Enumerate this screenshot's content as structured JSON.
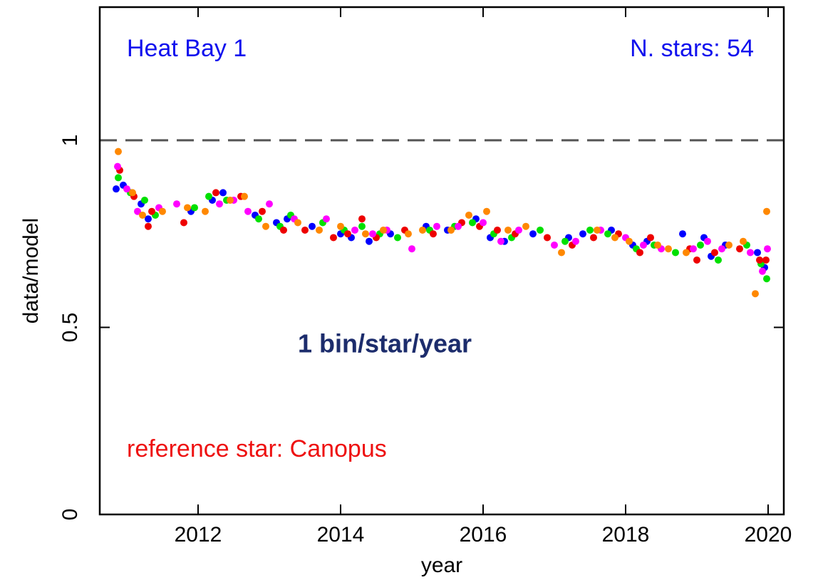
{
  "chart_data": {
    "type": "scatter",
    "annotations": [
      "Heat Bay 1",
      "N. stars: 54",
      "1 bin/star/year",
      "reference star: Canopus"
    ],
    "xlabel": "year",
    "ylabel": "data/model",
    "xlim": [
      2010.62,
      2020.22
    ],
    "ylim": [
      0,
      1.356
    ],
    "xticks": [
      2012,
      2014,
      2016,
      2018,
      2020
    ],
    "yticks": [
      0,
      0.5,
      1
    ],
    "hline": 1,
    "series": [
      {
        "color": "#0000ff",
        "x": [
          2010.85,
          2010.95,
          2011.2,
          2011.3,
          2011.9,
          2012.2,
          2012.35,
          2012.8,
          2013.1,
          2013.25,
          2013.6,
          2014.0,
          2014.15,
          2014.4,
          2014.7,
          2015.2,
          2015.5,
          2015.9,
          2016.1,
          2016.3,
          2016.7,
          2017.2,
          2017.4,
          2017.8,
          2018.1,
          2018.3,
          2018.8,
          2019.1,
          2019.2,
          2019.4,
          2019.85,
          2019.95
        ],
        "values": [
          0.87,
          0.88,
          0.83,
          0.79,
          0.81,
          0.84,
          0.86,
          0.8,
          0.78,
          0.79,
          0.77,
          0.75,
          0.74,
          0.73,
          0.75,
          0.77,
          0.76,
          0.79,
          0.74,
          0.73,
          0.75,
          0.74,
          0.75,
          0.76,
          0.72,
          0.73,
          0.75,
          0.74,
          0.69,
          0.72,
          0.7,
          0.66
        ]
      },
      {
        "color": "#00e000",
        "x": [
          2010.88,
          2011.05,
          2011.25,
          2011.4,
          2011.95,
          2012.15,
          2012.4,
          2012.85,
          2013.15,
          2013.3,
          2013.75,
          2014.05,
          2014.3,
          2014.55,
          2014.8,
          2015.25,
          2015.6,
          2015.85,
          2016.15,
          2016.4,
          2016.8,
          2017.15,
          2017.5,
          2017.75,
          2018.15,
          2018.4,
          2018.7,
          2019.05,
          2019.3,
          2019.7,
          2019.9,
          2019.98
        ],
        "values": [
          0.9,
          0.86,
          0.84,
          0.8,
          0.82,
          0.85,
          0.84,
          0.79,
          0.77,
          0.8,
          0.78,
          0.76,
          0.77,
          0.75,
          0.74,
          0.76,
          0.77,
          0.78,
          0.75,
          0.74,
          0.76,
          0.73,
          0.76,
          0.75,
          0.71,
          0.72,
          0.7,
          0.72,
          0.68,
          0.72,
          0.67,
          0.63
        ]
      },
      {
        "color": "#ee0000",
        "x": [
          2010.9,
          2011.1,
          2011.3,
          2011.35,
          2011.8,
          2012.25,
          2012.6,
          2012.9,
          2013.2,
          2013.5,
          2013.9,
          2014.1,
          2014.3,
          2014.5,
          2014.9,
          2015.3,
          2015.7,
          2015.95,
          2016.2,
          2016.45,
          2016.9,
          2017.25,
          2017.55,
          2017.9,
          2018.2,
          2018.35,
          2018.9,
          2019.0,
          2019.25,
          2019.6,
          2019.88,
          2019.97
        ],
        "values": [
          0.92,
          0.85,
          0.77,
          0.81,
          0.78,
          0.86,
          0.85,
          0.81,
          0.76,
          0.76,
          0.74,
          0.75,
          0.79,
          0.74,
          0.76,
          0.75,
          0.78,
          0.77,
          0.76,
          0.75,
          0.74,
          0.72,
          0.74,
          0.75,
          0.7,
          0.74,
          0.71,
          0.68,
          0.7,
          0.71,
          0.68,
          0.68
        ]
      },
      {
        "color": "#ff00ff",
        "x": [
          2010.87,
          2011.0,
          2011.15,
          2011.45,
          2011.7,
          2012.3,
          2012.5,
          2012.7,
          2013.0,
          2013.35,
          2013.8,
          2014.2,
          2014.45,
          2014.65,
          2015.0,
          2015.35,
          2015.65,
          2016.0,
          2016.25,
          2016.5,
          2017.0,
          2017.3,
          2017.65,
          2018.0,
          2018.25,
          2018.5,
          2018.95,
          2019.15,
          2019.35,
          2019.75,
          2019.92,
          2019.99
        ],
        "values": [
          0.93,
          0.87,
          0.81,
          0.82,
          0.83,
          0.83,
          0.84,
          0.81,
          0.83,
          0.79,
          0.79,
          0.76,
          0.75,
          0.76,
          0.71,
          0.77,
          0.77,
          0.78,
          0.73,
          0.76,
          0.72,
          0.73,
          0.76,
          0.74,
          0.72,
          0.71,
          0.71,
          0.73,
          0.71,
          0.7,
          0.65,
          0.71
        ]
      },
      {
        "color": "#ff8800",
        "x": [
          2010.88,
          2011.08,
          2011.22,
          2011.5,
          2011.85,
          2012.1,
          2012.45,
          2012.65,
          2012.95,
          2013.4,
          2013.7,
          2014.0,
          2014.35,
          2014.6,
          2014.95,
          2015.15,
          2015.55,
          2015.8,
          2016.05,
          2016.35,
          2016.6,
          2017.1,
          2017.6,
          2017.85,
          2018.05,
          2018.45,
          2018.6,
          2018.85,
          2019.45,
          2019.65,
          2019.82,
          2019.98
        ],
        "values": [
          0.97,
          0.86,
          0.8,
          0.81,
          0.82,
          0.81,
          0.84,
          0.85,
          0.77,
          0.78,
          0.76,
          0.77,
          0.75,
          0.76,
          0.75,
          0.76,
          0.76,
          0.8,
          0.81,
          0.76,
          0.77,
          0.7,
          0.76,
          0.74,
          0.73,
          0.72,
          0.71,
          0.7,
          0.72,
          0.73,
          0.59,
          0.81
        ]
      }
    ]
  }
}
